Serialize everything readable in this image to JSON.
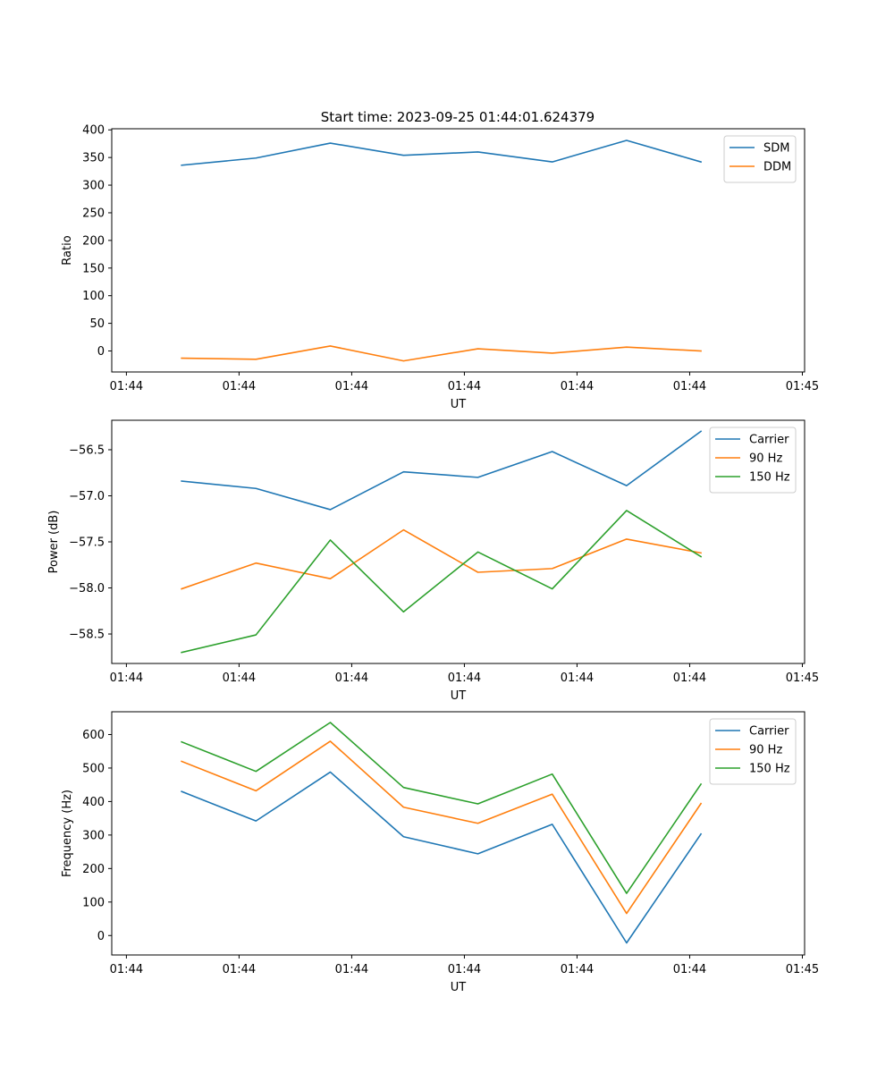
{
  "figure_title": "Start time: 2023-09-25 01:44:01.624379",
  "colors": {
    "blue": "#1f77b4",
    "orange": "#ff7f0e",
    "green": "#2ca02c"
  },
  "chart_data": [
    {
      "type": "line",
      "title": "Start time: 2023-09-25 01:44:01.624379",
      "xlabel": "UT",
      "ylabel": "Ratio",
      "x_tick_labels": [
        "01:44",
        "01:44",
        "01:44",
        "01:44",
        "01:44",
        "01:44",
        "01:45"
      ],
      "x_ticks": [
        0,
        1,
        2,
        3,
        4,
        5,
        6
      ],
      "xlim": [
        -0.13,
        6.02
      ],
      "x": [
        0.49,
        1.15,
        1.81,
        2.46,
        3.12,
        3.78,
        4.44,
        5.1
      ],
      "ylim": [
        -38,
        402
      ],
      "y_ticks": [
        0,
        50,
        100,
        150,
        200,
        250,
        300,
        350,
        400
      ],
      "y_tick_labels": [
        "0",
        "50",
        "100",
        "150",
        "200",
        "250",
        "300",
        "350",
        "400"
      ],
      "legend_position": "top-right",
      "series": [
        {
          "name": "SDM",
          "color": "#1f77b4",
          "values": [
            336,
            349,
            376,
            354,
            360,
            342,
            381,
            342
          ]
        },
        {
          "name": "DDM",
          "color": "#ff7f0e",
          "values": [
            -13,
            -15,
            9,
            -18,
            4,
            -4,
            7,
            0
          ]
        }
      ]
    },
    {
      "type": "line",
      "title": "",
      "xlabel": "UT",
      "ylabel": "Power (dB)",
      "x_tick_labels": [
        "01:44",
        "01:44",
        "01:44",
        "01:44",
        "01:44",
        "01:44",
        "01:45"
      ],
      "x_ticks": [
        0,
        1,
        2,
        3,
        4,
        5,
        6
      ],
      "xlim": [
        -0.13,
        6.02
      ],
      "x": [
        0.49,
        1.15,
        1.81,
        2.46,
        3.12,
        3.78,
        4.44,
        5.1
      ],
      "ylim": [
        -58.82,
        -56.18
      ],
      "y_ticks": [
        -58.5,
        -58.0,
        -57.5,
        -57.0,
        -56.5
      ],
      "y_tick_labels": [
        "−58.5",
        "−58.0",
        "−57.5",
        "−57.0",
        "−56.5"
      ],
      "legend_position": "top-right",
      "series": [
        {
          "name": "Carrier",
          "color": "#1f77b4",
          "values": [
            -56.84,
            -56.92,
            -57.15,
            -56.74,
            -56.8,
            -56.52,
            -56.89,
            -56.3
          ]
        },
        {
          "name": "90 Hz",
          "color": "#ff7f0e",
          "values": [
            -58.01,
            -57.73,
            -57.9,
            -57.37,
            -57.83,
            -57.79,
            -57.47,
            -57.62
          ]
        },
        {
          "name": "150 Hz",
          "color": "#2ca02c",
          "values": [
            -58.7,
            -58.51,
            -57.48,
            -58.26,
            -57.61,
            -58.01,
            -57.16,
            -57.66
          ]
        }
      ]
    },
    {
      "type": "line",
      "title": "",
      "xlabel": "UT",
      "ylabel": "Frequency (Hz)",
      "x_tick_labels": [
        "01:44",
        "01:44",
        "01:44",
        "01:44",
        "01:44",
        "01:44",
        "01:45"
      ],
      "x_ticks": [
        0,
        1,
        2,
        3,
        4,
        5,
        6
      ],
      "xlim": [
        -0.13,
        6.02
      ],
      "x": [
        0.49,
        1.15,
        1.81,
        2.46,
        3.12,
        3.78,
        4.44,
        5.1
      ],
      "ylim": [
        -58,
        668
      ],
      "y_ticks": [
        0,
        100,
        200,
        300,
        400,
        500,
        600
      ],
      "y_tick_labels": [
        "0",
        "100",
        "200",
        "300",
        "400",
        "500",
        "600"
      ],
      "legend_position": "top-right",
      "series": [
        {
          "name": "Carrier",
          "color": "#1f77b4",
          "values": [
            430,
            342,
            488,
            295,
            244,
            332,
            -22,
            303
          ]
        },
        {
          "name": "90 Hz",
          "color": "#ff7f0e",
          "values": [
            520,
            432,
            580,
            383,
            335,
            422,
            66,
            394
          ]
        },
        {
          "name": "150 Hz",
          "color": "#2ca02c",
          "values": [
            578,
            490,
            636,
            442,
            393,
            482,
            126,
            452
          ]
        }
      ]
    }
  ]
}
